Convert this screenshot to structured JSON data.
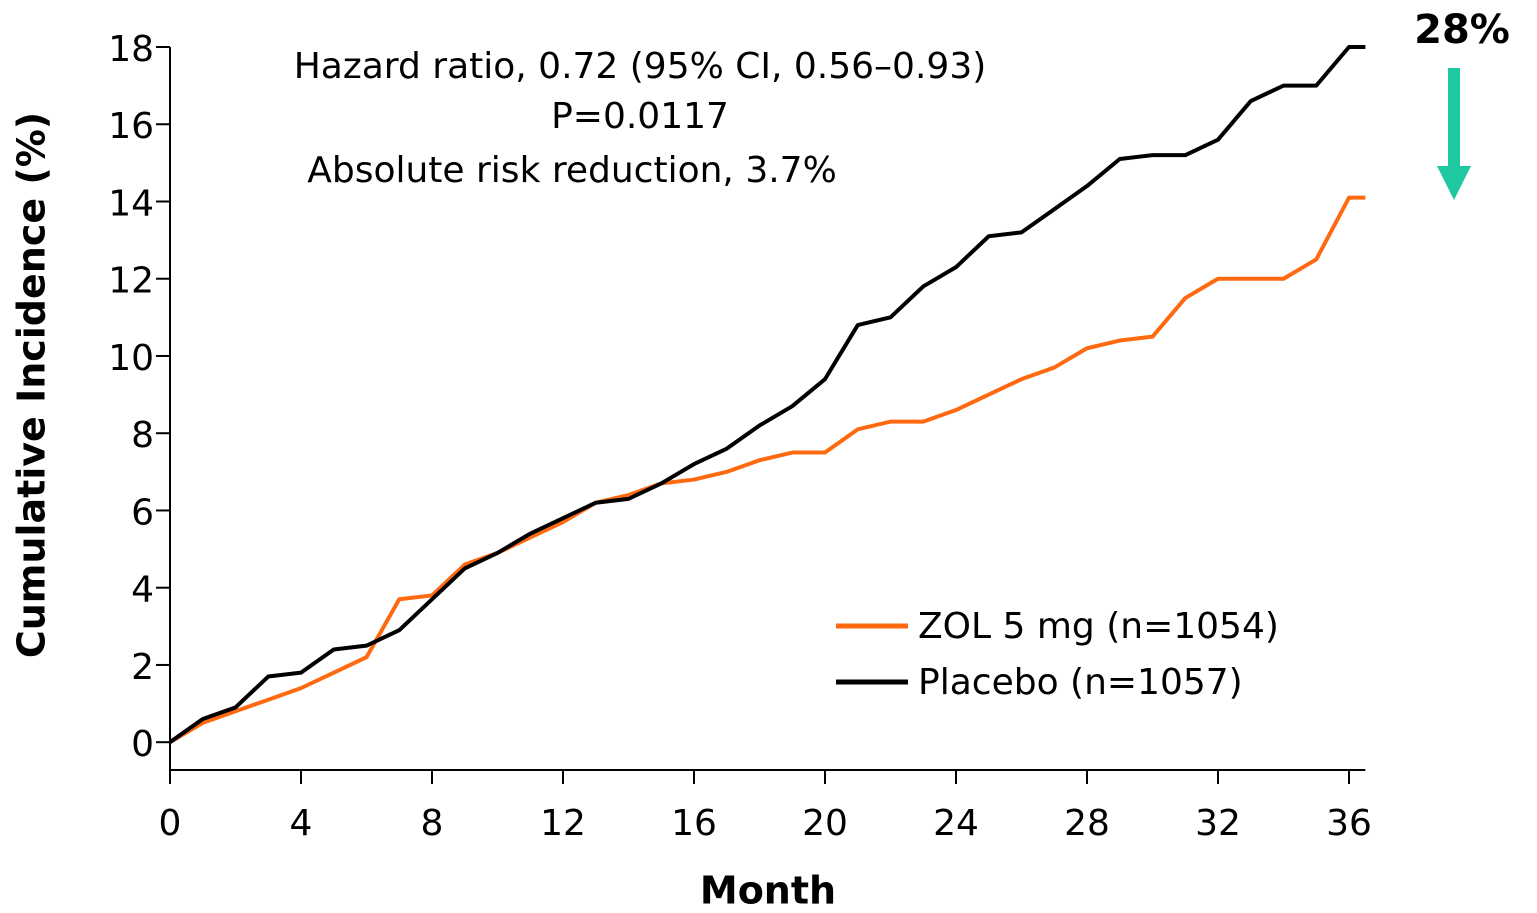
{
  "chart_data": {
    "type": "line",
    "xlabel": "Month",
    "ylabel": "Cumulative Incidence (%)",
    "annotations": [
      "Hazard ratio, 0.72 (95% CI, 0.56–0.93)",
      "P=0.0117",
      "Absolute risk reduction, 3.7%",
      "28%"
    ],
    "arrow_color": "#1ec8a0",
    "x": [
      0,
      1,
      2,
      3,
      4,
      5,
      6,
      7,
      8,
      9,
      10,
      11,
      12,
      13,
      14,
      15,
      16,
      17,
      18,
      19,
      20,
      21,
      22,
      23,
      24,
      25,
      26,
      27,
      28,
      29,
      30,
      31,
      32,
      33,
      34,
      35,
      36,
      36.5
    ],
    "series": [
      {
        "name": "ZOL 5 mg (n=1054)",
        "color": "#ff6a10",
        "values": [
          0,
          0.5,
          0.8,
          1.1,
          1.4,
          1.8,
          2.2,
          3.7,
          3.8,
          4.6,
          4.9,
          5.3,
          5.7,
          6.2,
          6.4,
          6.7,
          6.8,
          7.0,
          7.3,
          7.5,
          7.5,
          8.1,
          8.3,
          8.3,
          8.6,
          9.0,
          9.4,
          9.7,
          10.2,
          10.4,
          10.5,
          11.5,
          12.0,
          12.0,
          12.0,
          12.5,
          14.1,
          14.1
        ]
      },
      {
        "name": "Placebo (n=1057)",
        "color": "#000000",
        "values": [
          0,
          0.6,
          0.9,
          1.7,
          1.8,
          2.4,
          2.5,
          2.9,
          3.7,
          4.5,
          4.9,
          5.4,
          5.8,
          6.2,
          6.3,
          6.7,
          7.2,
          7.6,
          8.2,
          8.7,
          9.4,
          10.8,
          11.0,
          11.8,
          12.3,
          13.1,
          13.2,
          13.8,
          14.4,
          15.1,
          15.2,
          15.2,
          15.6,
          16.6,
          17.0,
          17.0,
          18.0,
          18.0
        ]
      }
    ],
    "xlim": [
      0,
      36.5
    ],
    "xticks": [
      0,
      4,
      8,
      12,
      16,
      20,
      24,
      28,
      32,
      36
    ],
    "ylim": [
      -0.72,
      18
    ],
    "yticks": [
      0,
      2,
      4,
      6,
      8,
      10,
      12,
      14,
      16,
      18
    ],
    "grid": false,
    "legend": "lower right"
  }
}
